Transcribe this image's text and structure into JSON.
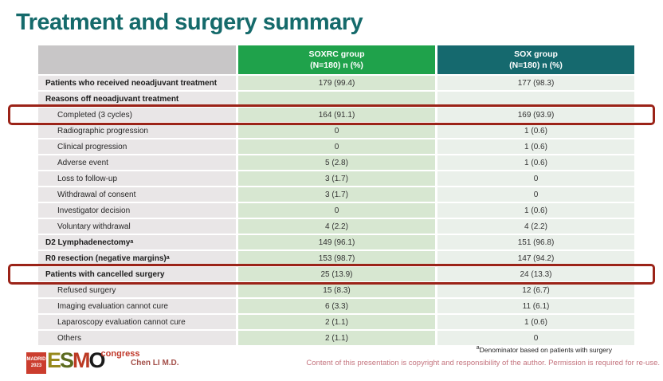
{
  "slide": {
    "title": "Treatment and surgery summary",
    "footnote_superscript": "a",
    "footnote": "Denominator based on patients with surgery",
    "author": "Chen LI M.D.",
    "copyright": "Content of this presentation is copyright and responsibility of the author. Permission is required for re-use.",
    "logo": {
      "city": "MADRID",
      "year": "2023",
      "org_letters": [
        "E",
        "S",
        "M",
        "O"
      ],
      "letter_colors": [
        "#97891c",
        "#5c6b1f",
        "#bc3a24",
        "#1a1a1a"
      ],
      "congress": "congress"
    }
  },
  "colors": {
    "title": "#156a6b",
    "highlight_border": "#9b2318",
    "label_column_bg": "#e9e6e7",
    "soxrc_cell_bg": "#d7e7d1",
    "sox_cell_bg": "#eaf0ea",
    "header_label_bg": "#c8c6c7"
  },
  "table": {
    "columns": [
      {
        "name": "SOXRC group",
        "sub": "(N=180)  n (%)",
        "color": "#1fa24b"
      },
      {
        "name": "SOX group",
        "sub": "(N=180)  n (%)",
        "color": "#15696e"
      }
    ],
    "rows": [
      {
        "label": "Patients who received neoadjuvant treatment",
        "soxrc": "179 (99.4)",
        "sox": "177 (98.3)",
        "bold": true,
        "indent": false,
        "highlight": false
      },
      {
        "label": "Reasons off neoadjuvant treatment",
        "soxrc": "",
        "sox": "",
        "bold": true,
        "indent": false,
        "highlight": false
      },
      {
        "label": "Completed (3 cycles)",
        "soxrc": "164 (91.1)",
        "sox": "169 (93.9)",
        "bold": false,
        "indent": true,
        "highlight": true
      },
      {
        "label": "Radiographic progression",
        "soxrc": "0",
        "sox": "1 (0.6)",
        "bold": false,
        "indent": true,
        "highlight": false
      },
      {
        "label": "Clinical progression",
        "soxrc": "0",
        "sox": "1 (0.6)",
        "bold": false,
        "indent": true,
        "highlight": false
      },
      {
        "label": "Adverse event",
        "soxrc": "5 (2.8)",
        "sox": "1 (0.6)",
        "bold": false,
        "indent": true,
        "highlight": false
      },
      {
        "label": "Loss to follow-up",
        "soxrc": "3 (1.7)",
        "sox": "0",
        "bold": false,
        "indent": true,
        "highlight": false
      },
      {
        "label": "Withdrawal of consent",
        "soxrc": "3 (1.7)",
        "sox": "0",
        "bold": false,
        "indent": true,
        "highlight": false
      },
      {
        "label": "Investigator decision",
        "soxrc": "0",
        "sox": "1 (0.6)",
        "bold": false,
        "indent": true,
        "highlight": false
      },
      {
        "label": "Voluntary withdrawal",
        "soxrc": "4 (2.2)",
        "sox": "4 (2.2)",
        "bold": false,
        "indent": true,
        "highlight": false
      },
      {
        "label": "D2 Lymphadenectomy",
        "label_sup": "a",
        "soxrc": "149 (96.1)",
        "sox": "151 (96.8)",
        "bold": true,
        "indent": false,
        "highlight": false
      },
      {
        "label": "R0 resection (negative margins)",
        "label_sup": "a",
        "soxrc": "153 (98.7)",
        "sox": "147 (94.2)",
        "bold": true,
        "indent": false,
        "highlight": false
      },
      {
        "label": "Patients with cancelled surgery",
        "soxrc": "25 (13.9)",
        "sox": "24 (13.3)",
        "bold": true,
        "indent": false,
        "highlight": true
      },
      {
        "label": "Refused surgery",
        "soxrc": "15 (8.3)",
        "sox": "12 (6.7)",
        "bold": false,
        "indent": true,
        "highlight": false
      },
      {
        "label": "Imaging evaluation cannot cure",
        "soxrc": "6 (3.3)",
        "sox": "11 (6.1)",
        "bold": false,
        "indent": true,
        "highlight": false
      },
      {
        "label": "Laparoscopy evaluation cannot cure",
        "soxrc": "2 (1.1)",
        "sox": "1 (0.6)",
        "bold": false,
        "indent": true,
        "highlight": false
      },
      {
        "label": "Others",
        "soxrc": "2 (1.1)",
        "sox": "0",
        "bold": false,
        "indent": true,
        "highlight": false
      }
    ]
  }
}
